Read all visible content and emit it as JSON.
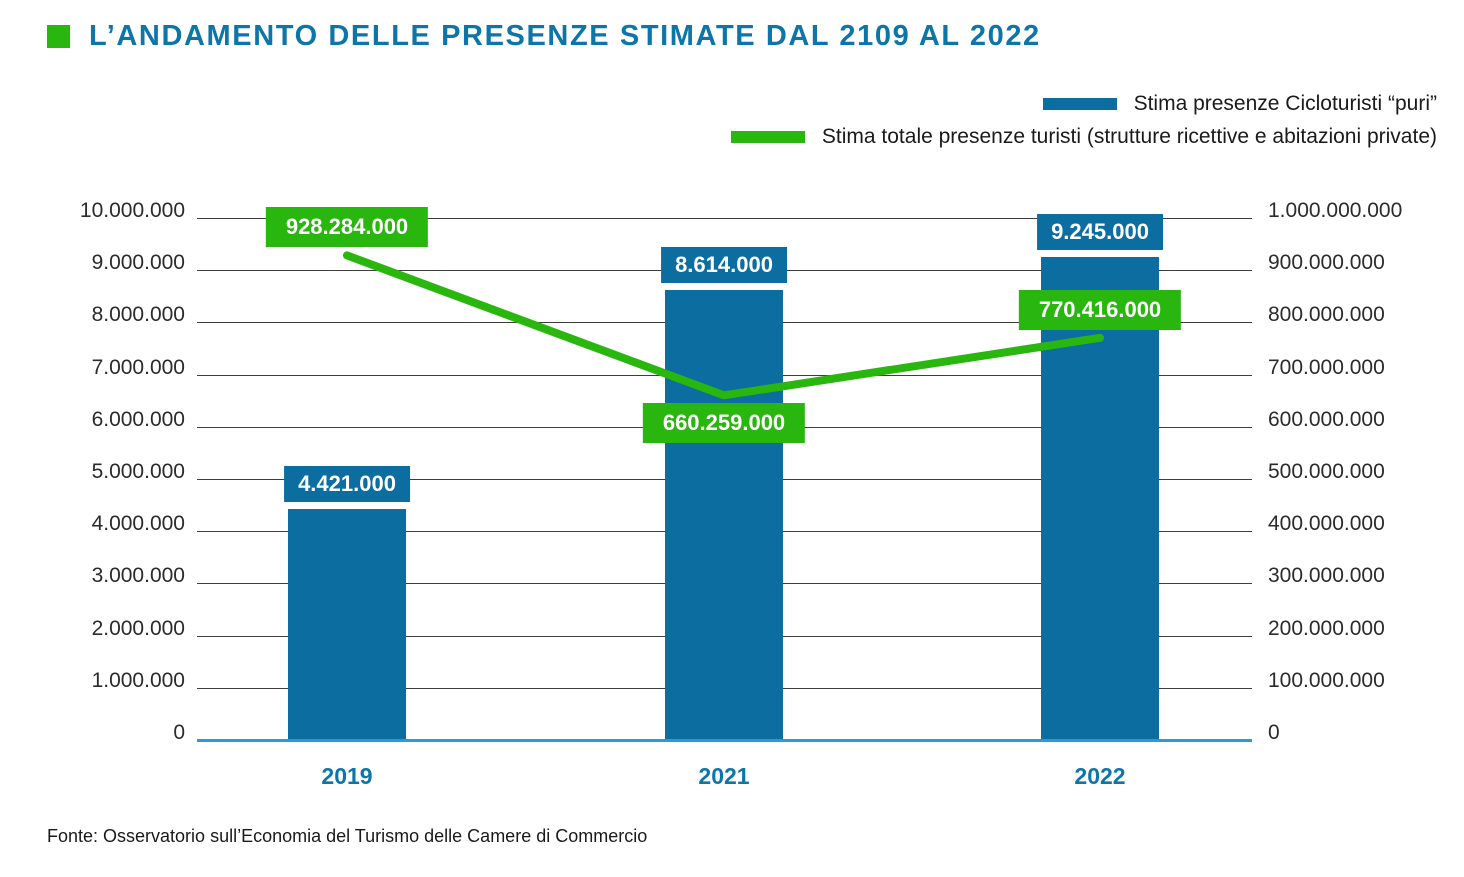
{
  "header": {
    "title": "L’ANDAMENTO DELLE PRESENZE STIMATE DAL 2109 AL 2022"
  },
  "legend": [
    {
      "label": "Stima presenze Cicloturisti “puri”",
      "color": "#0b6da0"
    },
    {
      "label": "Stima totale presenze turisti (strutture ricettive e abitazioni private)",
      "color": "#29b60e"
    }
  ],
  "footer": {
    "source": "Fonte: Osservatorio sull’Economia del Turismo delle Camere di Commercio"
  },
  "colors": {
    "title_blue": "#0d76a8",
    "bar_blue": "#0b6da0",
    "line_green": "#29b60e",
    "axis_line_blue": "#2d9ad0",
    "grid": "#3d3d3d"
  },
  "chart_data": {
    "type": "bar",
    "title": "L’ANDAMENTO DELLE PRESENZE STIMATE DAL 2109 AL 2022",
    "categories": [
      "2019",
      "2021",
      "2022"
    ],
    "series": [
      {
        "name": "Stima presenze Cicloturisti “puri”",
        "type": "bar",
        "axis": "left",
        "color": "#0b6da0",
        "values": [
          4421000,
          8614000,
          9245000
        ],
        "labels": [
          "4.421.000",
          "8.614.000",
          "9.245.000"
        ]
      },
      {
        "name": "Stima totale presenze turisti (strutture ricettive e abitazioni private)",
        "type": "line",
        "axis": "right",
        "color": "#29b60e",
        "values": [
          928284000,
          660259000,
          770416000
        ],
        "labels": [
          "928.284.000",
          "660.259.000",
          "770.416.000"
        ],
        "label_positions": [
          "above",
          "below",
          "above"
        ]
      }
    ],
    "left_axis": {
      "min": 0,
      "max": 10000000,
      "ticks": [
        "0",
        "1.000.000",
        "2.000.000",
        "3.000.000",
        "4.000.000",
        "5.000.000",
        "6.000.000",
        "7.000.000",
        "8.000.000",
        "9.000.000",
        "10.000.000"
      ]
    },
    "right_axis": {
      "min": 0,
      "max": 1000000000,
      "ticks": [
        "0",
        "100.000.000",
        "200.000.000",
        "300.000.000",
        "400.000.000",
        "500.000.000",
        "600.000.000",
        "700.000.000",
        "800.000.000",
        "900.000.000",
        "1.000.000.000"
      ]
    },
    "grid": true,
    "legend_position": "top-right"
  }
}
